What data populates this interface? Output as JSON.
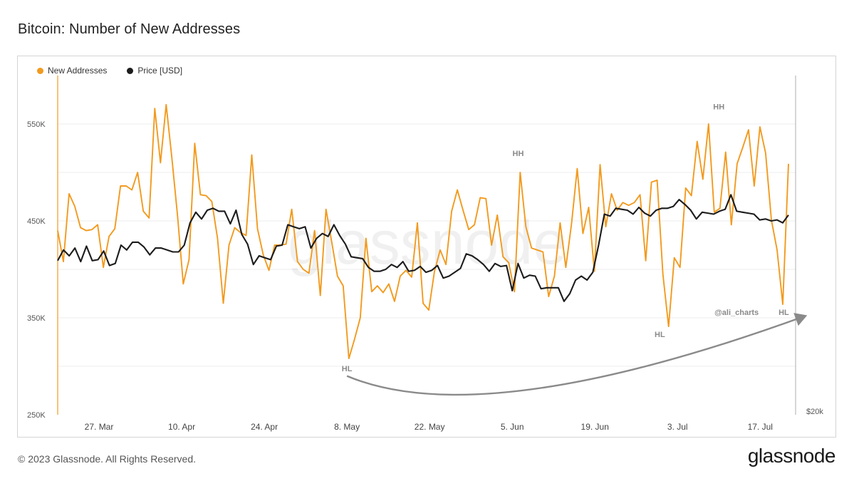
{
  "title": "Bitcoin: Number of New Addresses",
  "footer": {
    "copyright": "© 2023 Glassnode. All Rights Reserved.",
    "brand": "glassnode"
  },
  "watermark": "glassnode",
  "colors": {
    "new_addresses": "#f29a1e",
    "price": "#1c1c1c",
    "trend_arrow": "#8a8a8a",
    "grid": "#ececec"
  },
  "chart_data": {
    "type": "line",
    "title": "Bitcoin: Number of New Addresses",
    "legend_position": "top-left",
    "grid": true,
    "x_tick_labels": [
      "27. Mar",
      "10. Apr",
      "24. Apr",
      "8. May",
      "22. May",
      "5. Jun",
      "19. Jun",
      "3. Jul",
      "17. Jul"
    ],
    "x_range": [
      "2023-03-20",
      "2023-07-23"
    ],
    "y_left": {
      "ticks": [
        "250K",
        "350K",
        "450K",
        "550K"
      ],
      "range": [
        250000,
        600000
      ]
    },
    "y_right": {
      "ticks": [
        "$20k"
      ]
    },
    "series": [
      {
        "name": "New Addresses",
        "axis": "left",
        "values": [
          440000,
          408000,
          478000,
          465000,
          443000,
          440000,
          441000,
          446000,
          402000,
          434000,
          442000,
          486000,
          486000,
          482000,
          500000,
          460000,
          453000,
          566000,
          510000,
          570000,
          515000,
          455000,
          385000,
          410000,
          530000,
          477000,
          476000,
          470000,
          432000,
          365000,
          425000,
          443000,
          438000,
          435000,
          518000,
          442000,
          415000,
          399000,
          425000,
          425000,
          426000,
          462000,
          408000,
          400000,
          396000,
          440000,
          373000,
          462000,
          428000,
          393000,
          383000,
          308000,
          328000,
          350000,
          432000,
          377000,
          383000,
          376000,
          385000,
          367000,
          393000,
          399000,
          392000,
          448000,
          365000,
          358000,
          398000,
          420000,
          405000,
          460000,
          482000,
          461000,
          441000,
          446000,
          474000,
          473000,
          425000,
          456000,
          413000,
          407000,
          377000,
          500000,
          444000,
          422000,
          420000,
          418000,
          372000,
          393000,
          448000,
          402000,
          447000,
          504000,
          437000,
          464000,
          398000,
          508000,
          444000,
          478000,
          461000,
          469000,
          466000,
          469000,
          477000,
          409000,
          490000,
          492000,
          395000,
          341000,
          412000,
          402000,
          484000,
          476000,
          532000,
          493000,
          550000,
          459000,
          463000,
          521000,
          446000,
          509000,
          526000,
          544000,
          486000,
          547000,
          520000,
          451000,
          420000,
          364000,
          509000
        ]
      },
      {
        "name": "Price [USD]",
        "axis": "right",
        "values": [
          409000,
          420000,
          414000,
          422000,
          408000,
          424000,
          409000,
          410000,
          419000,
          404000,
          406000,
          425000,
          420000,
          428000,
          428000,
          423000,
          415000,
          422000,
          422000,
          420000,
          418000,
          418000,
          425000,
          448000,
          459000,
          452000,
          461000,
          463000,
          460000,
          460000,
          447000,
          461000,
          436000,
          426000,
          405000,
          414000,
          412000,
          410000,
          424000,
          425000,
          446000,
          444000,
          442000,
          444000,
          422000,
          432000,
          437000,
          434000,
          446000,
          435000,
          426000,
          413000,
          412000,
          411000,
          402000,
          398000,
          398000,
          400000,
          405000,
          402000,
          408000,
          398000,
          399000,
          403000,
          397000,
          399000,
          404000,
          391000,
          393000,
          397000,
          401000,
          416000,
          414000,
          410000,
          405000,
          398000,
          406000,
          403000,
          404000,
          378000,
          406000,
          391000,
          394000,
          393000,
          380000,
          381000,
          381000,
          381000,
          367000,
          375000,
          389000,
          393000,
          389000,
          397000,
          425000,
          457000,
          455000,
          463000,
          462000,
          461000,
          457000,
          464000,
          458000,
          455000,
          461000,
          463000,
          463000,
          465000,
          472000,
          467000,
          461000,
          452000,
          459000,
          458000,
          457000,
          460000,
          462000,
          477000,
          460000,
          459000,
          458000,
          457000,
          451000,
          452000,
          450000,
          451000,
          448000,
          456000
        ]
      }
    ],
    "annotations": [
      {
        "text": "HL",
        "x": "2023-05-08",
        "y": 295000
      },
      {
        "text": "HH",
        "x": "2023-06-06",
        "y": 517000
      },
      {
        "text": "HL",
        "x": "2023-06-30",
        "y": 330000
      },
      {
        "text": "HH",
        "x": "2023-07-10",
        "y": 565000
      },
      {
        "text": "HL",
        "x": "2023-07-21",
        "y": 353000
      },
      {
        "text": "@ali_charts",
        "x": "2023-07-13",
        "y": 353000
      }
    ],
    "trend_arrow": {
      "from": [
        "2023-05-08",
        290000
      ],
      "via": [
        "2023-05-31",
        275000
      ],
      "to": [
        "2023-07-23",
        352000
      ]
    }
  }
}
